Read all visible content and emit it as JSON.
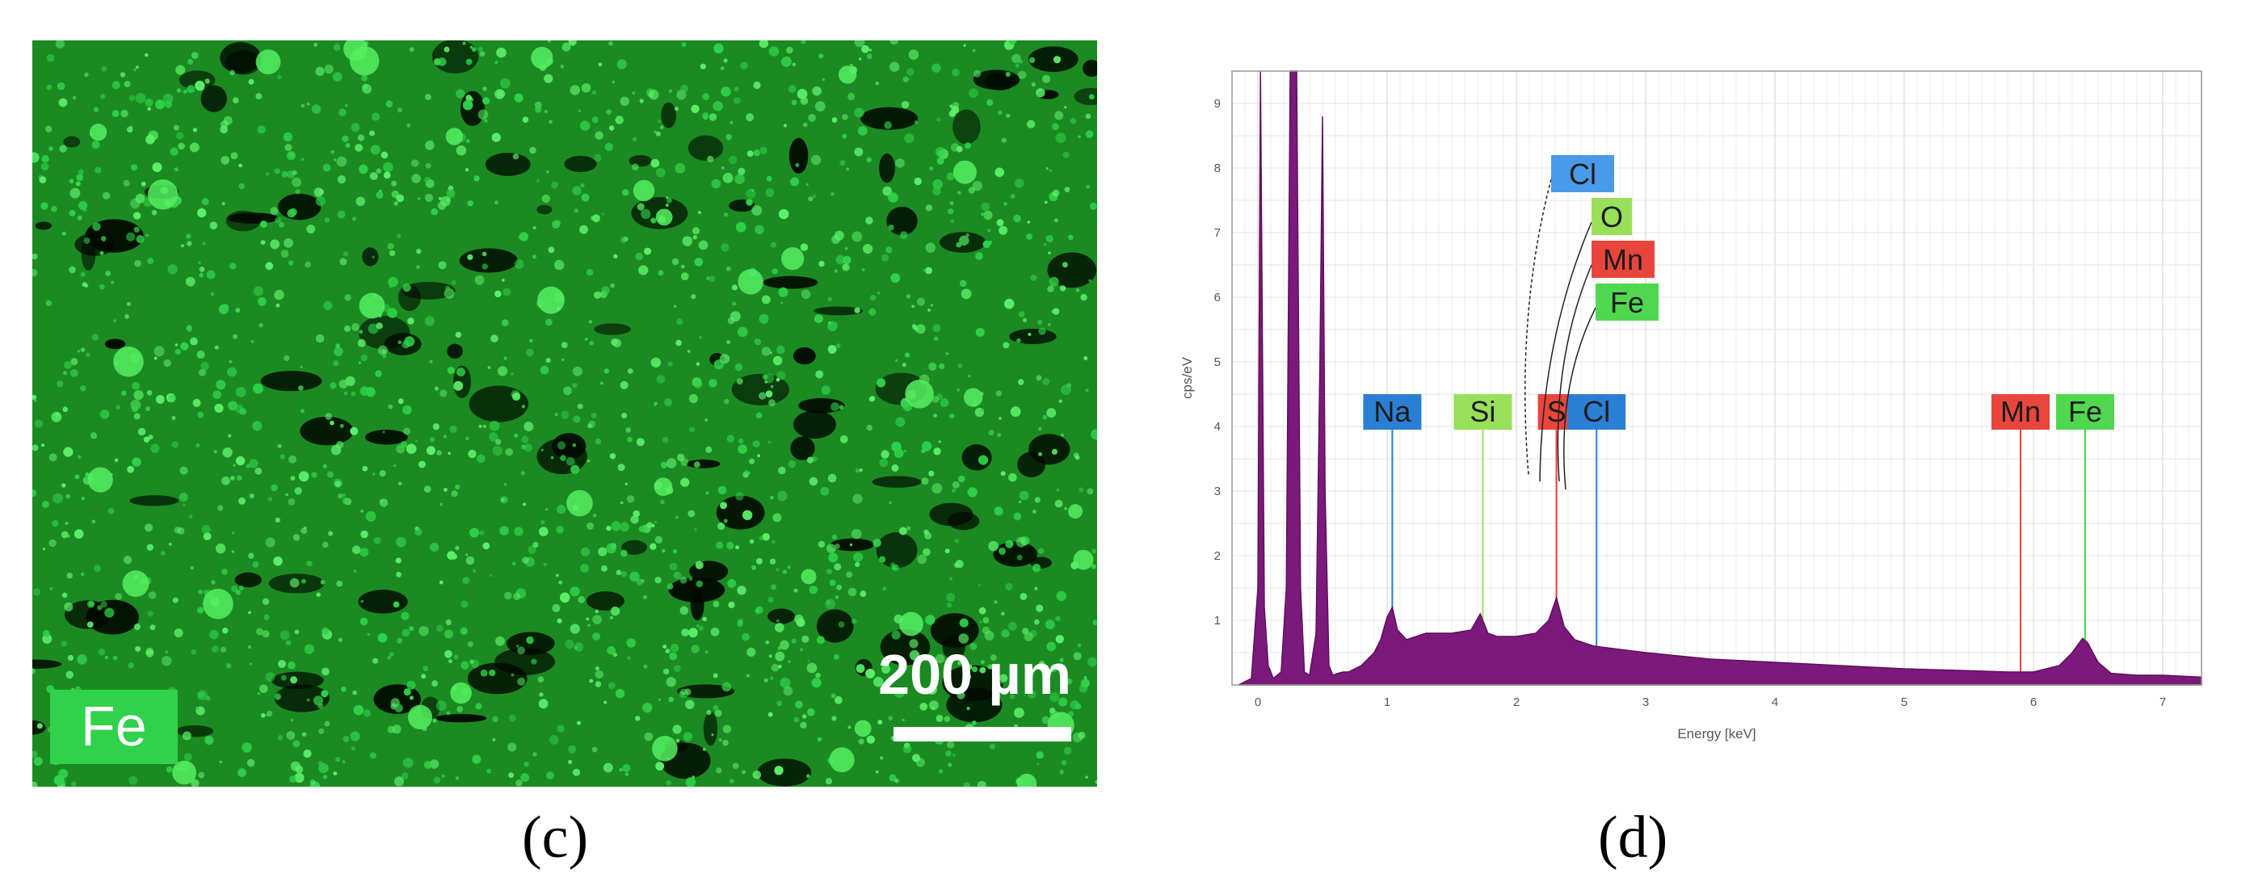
{
  "panel_c": {
    "caption": "(c)",
    "element_badge": "Fe",
    "scale_text": "200 µm",
    "map_color": "#2fd24a"
  },
  "panel_d": {
    "caption": "(d)"
  },
  "chart_data": {
    "type": "area",
    "title": "",
    "xlabel": "Energy [keV]",
    "ylabel": "cps/eV",
    "xlim": [
      -0.2,
      7.3
    ],
    "ylim": [
      0,
      9.5
    ],
    "xticks": [
      0,
      1,
      2,
      3,
      4,
      5,
      6,
      7
    ],
    "yticks": [
      1,
      2,
      3,
      4,
      5,
      6,
      7,
      8,
      9
    ],
    "grid": true,
    "fill_color": "#7b1a7b",
    "series": [
      {
        "x": [
          -0.15,
          -0.05,
          0.0,
          0.02,
          0.05,
          0.08,
          0.12,
          0.18,
          0.22,
          0.25,
          0.27,
          0.3,
          0.33,
          0.36,
          0.4,
          0.45,
          0.48,
          0.5,
          0.52,
          0.55,
          0.58,
          0.62,
          0.66,
          0.7,
          0.75,
          0.8,
          0.85,
          0.9,
          0.95,
          1.0,
          1.04,
          1.08,
          1.15,
          1.3,
          1.5,
          1.65,
          1.72,
          1.78,
          1.85,
          2.0,
          2.15,
          2.25,
          2.31,
          2.37,
          2.45,
          2.6,
          2.8,
          3.0,
          3.5,
          4.0,
          4.5,
          5.0,
          5.5,
          5.8,
          6.0,
          6.2,
          6.3,
          6.38,
          6.42,
          6.5,
          6.6,
          6.8,
          7.0,
          7.3
        ],
        "y": [
          0.0,
          0.1,
          1.5,
          9.5,
          1.2,
          0.3,
          0.1,
          0.2,
          1.5,
          9.5,
          9.5,
          9.5,
          1.5,
          0.2,
          0.15,
          0.8,
          5.0,
          8.8,
          3.0,
          0.3,
          0.15,
          0.18,
          0.2,
          0.2,
          0.25,
          0.3,
          0.4,
          0.5,
          0.7,
          1.05,
          1.2,
          0.85,
          0.7,
          0.8,
          0.8,
          0.85,
          1.1,
          0.8,
          0.75,
          0.75,
          0.8,
          1.0,
          1.35,
          0.9,
          0.7,
          0.6,
          0.55,
          0.5,
          0.4,
          0.35,
          0.3,
          0.25,
          0.22,
          0.2,
          0.2,
          0.3,
          0.5,
          0.72,
          0.65,
          0.35,
          0.18,
          0.15,
          0.15,
          0.12
        ]
      }
    ],
    "element_lines": [
      {
        "element": "Na",
        "energy": 1.04,
        "color": "#2a7fd4"
      },
      {
        "element": "Si",
        "energy": 1.74,
        "color": "#99e05a"
      },
      {
        "element": "S",
        "energy": 2.31,
        "color": "#e8453c"
      },
      {
        "element": "Cl",
        "energy": 2.62,
        "color": "#2a7fd4"
      },
      {
        "element": "Mn",
        "energy": 5.9,
        "color": "#e8453c"
      },
      {
        "element": "Fe",
        "energy": 6.4,
        "color": "#4fd84f"
      }
    ],
    "annotations": [
      {
        "text": "Cl",
        "color": "#4a9ae8"
      },
      {
        "text": "O",
        "color": "#99e05a"
      },
      {
        "text": "Mn",
        "color": "#e8453c"
      },
      {
        "text": "Fe",
        "color": "#4fd84f"
      }
    ]
  }
}
